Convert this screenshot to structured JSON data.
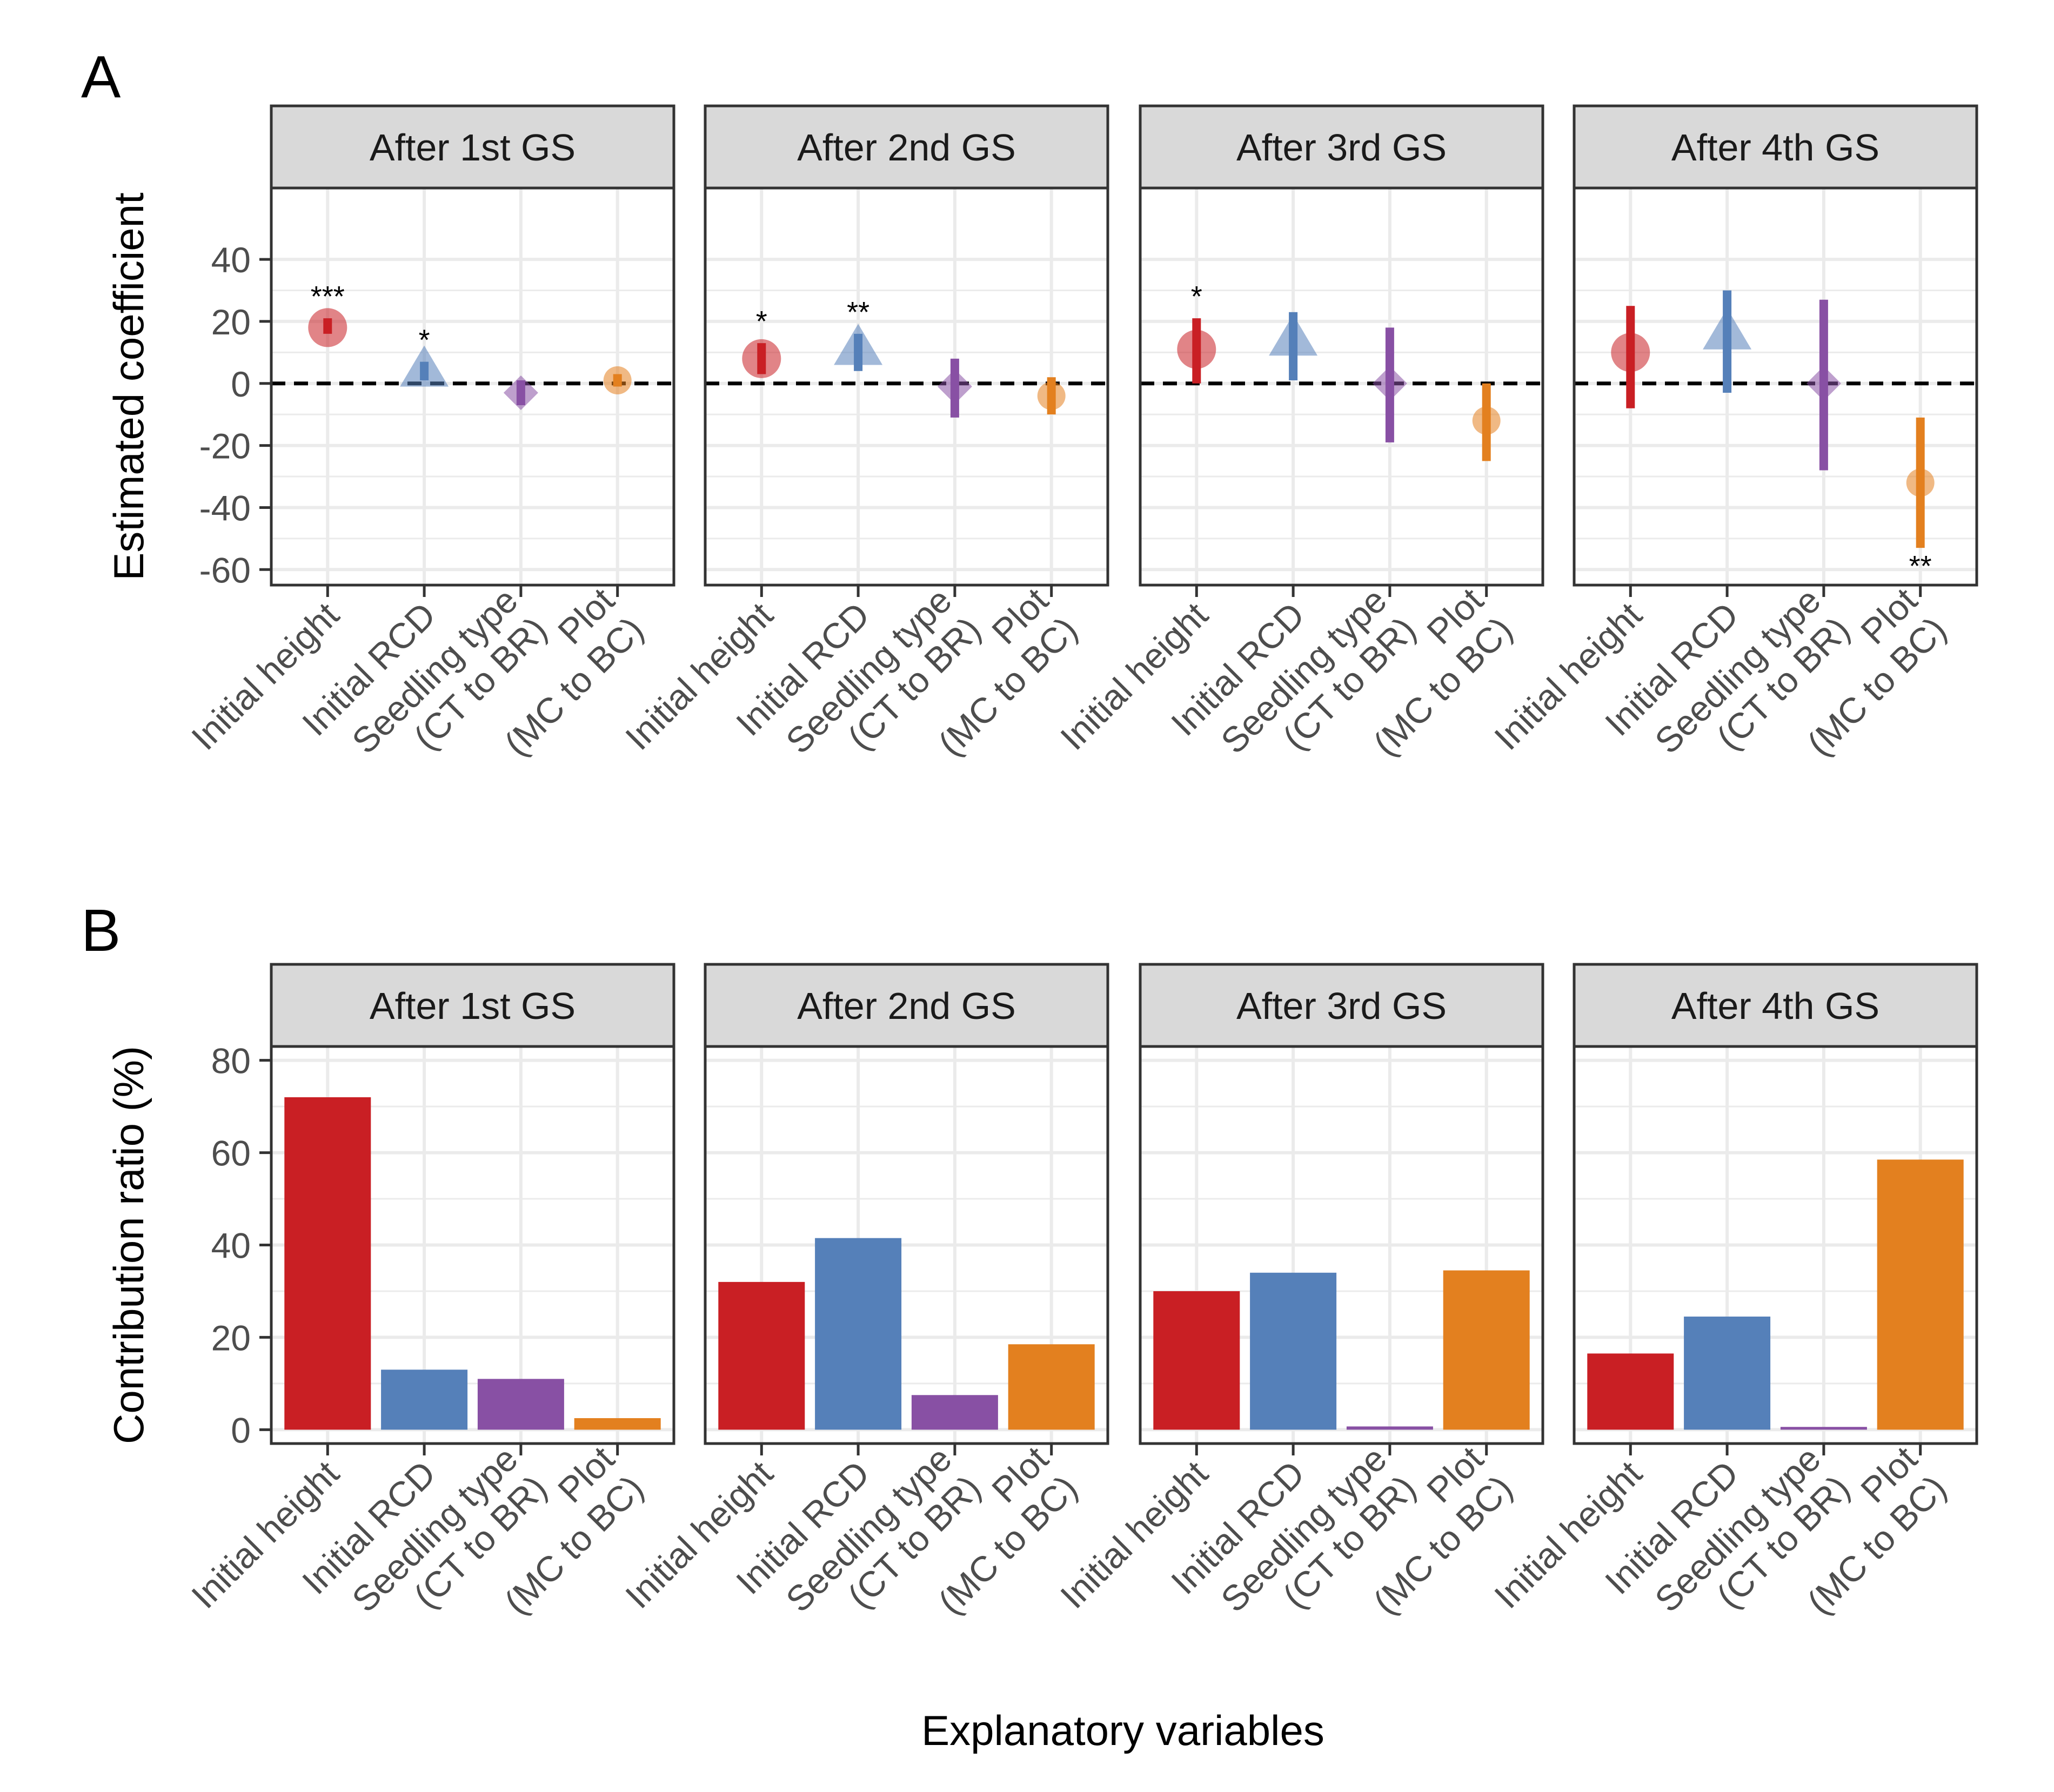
{
  "figure": {
    "panel_a_label": "A",
    "panel_b_label": "B",
    "xlabel": "Explanatory variables"
  },
  "colors": {
    "initial_height": "#c91f24",
    "initial_rcd": "#5580b9",
    "seedling_type": "#8850a4",
    "plot": "#e3801f",
    "strip_fill": "#d9d9d9",
    "grid": "#ebebeb"
  },
  "chart_data": [
    {
      "type": "scatter",
      "title": "A",
      "ylabel": "Estimated coefficient",
      "ylim": [
        -65,
        63
      ],
      "yticks": [
        40,
        20,
        0,
        -20,
        -40,
        -60
      ],
      "reference_line": 0,
      "categories": [
        "Initial height",
        "Initial RCD",
        "Seedling type\n(CT to BR)",
        "Plot\n(MC to BC)"
      ],
      "marker_shapes": [
        "circle",
        "triangle",
        "diamond",
        "circle"
      ],
      "facets": [
        {
          "strip": "After 1st GS",
          "estimates": [
            18,
            4,
            -3,
            1
          ],
          "ci_low": [
            16,
            1,
            -7,
            -1
          ],
          "ci_high": [
            21,
            7,
            1,
            3
          ],
          "significance": [
            "***",
            "*",
            "",
            ""
          ]
        },
        {
          "strip": "After 2nd GS",
          "estimates": [
            8,
            11,
            -1,
            -4
          ],
          "ci_low": [
            3,
            4,
            -11,
            -10
          ],
          "ci_high": [
            13,
            16,
            8,
            2
          ],
          "significance": [
            "*",
            "**",
            "",
            ""
          ]
        },
        {
          "strip": "After 3rd GS",
          "estimates": [
            11,
            14,
            0,
            -12
          ],
          "ci_low": [
            0,
            1,
            -19,
            -25
          ],
          "ci_high": [
            21,
            23,
            18,
            0
          ],
          "significance": [
            "*",
            "",
            "",
            ""
          ]
        },
        {
          "strip": "After 4th GS",
          "estimates": [
            10,
            16,
            0,
            -32
          ],
          "ci_low": [
            -8,
            -3,
            -28,
            -53
          ],
          "ci_high": [
            25,
            30,
            27,
            -11
          ],
          "significance": [
            "",
            "",
            "",
            "**"
          ]
        }
      ]
    },
    {
      "type": "bar",
      "title": "B",
      "ylabel": "Contribution ratio (%)",
      "ylim": [
        -3,
        83
      ],
      "yticks": [
        80,
        60,
        40,
        20,
        0
      ],
      "categories": [
        "Initial height",
        "Initial RCD",
        "Seedling type\n(CT to BR)",
        "Plot\n(MC to BC)"
      ],
      "facets": [
        {
          "strip": "After 1st GS",
          "values": [
            72,
            13,
            11,
            2.5
          ]
        },
        {
          "strip": "After 2nd GS",
          "values": [
            32,
            41.5,
            7.5,
            18.5
          ]
        },
        {
          "strip": "After 3rd GS",
          "values": [
            30,
            34,
            0.7,
            34.5
          ]
        },
        {
          "strip": "After 4th GS",
          "values": [
            16.5,
            24.5,
            0.6,
            58.5
          ]
        }
      ]
    }
  ]
}
